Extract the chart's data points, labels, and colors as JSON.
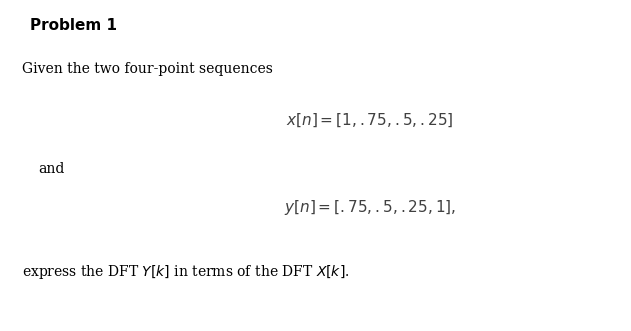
{
  "background_color": "#ffffff",
  "title": "Problem 1",
  "title_fontsize": 11,
  "title_fontweight": "bold",
  "line1_text": "Given the two four-point sequences",
  "line1_fontsize": 10,
  "eq1_text": "$x[n] = [1, .75, .5, .25]$",
  "eq1_fontsize": 11,
  "and_text": "and",
  "and_fontsize": 10,
  "eq2_text": "$y[n] = [.75, .5, .25, 1],$",
  "eq2_fontsize": 11,
  "line_last_fontsize": 10,
  "line_last_text": "express the DFT $Y[k]$ in terms of the DFT $X[k]$."
}
